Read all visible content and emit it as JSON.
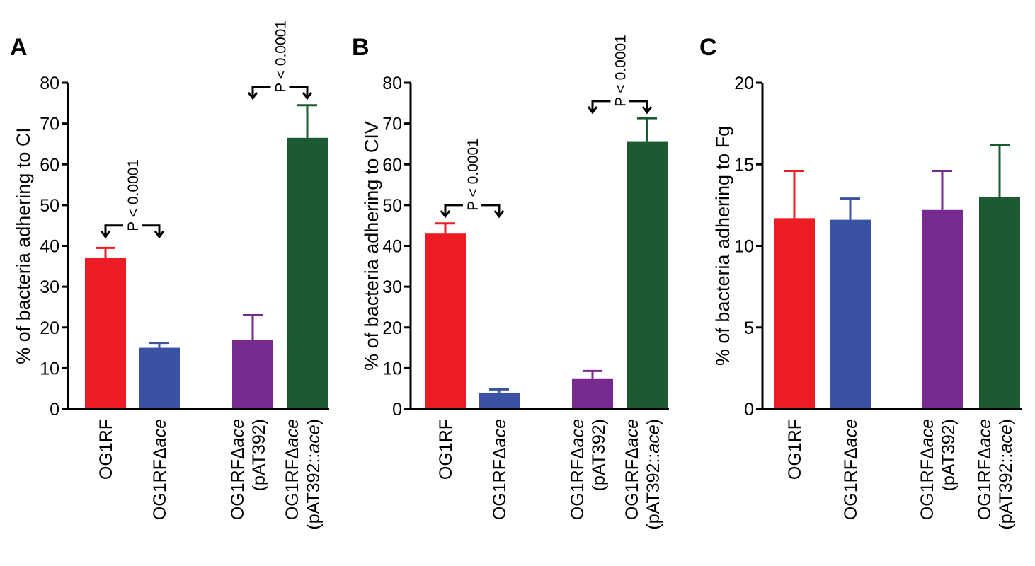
{
  "chart_data": [
    {
      "type": "bar",
      "panel": "A",
      "ylabel": "% of bacteria adhering to CI",
      "ylim": [
        0,
        80
      ],
      "yticks": [
        0,
        10,
        20,
        30,
        40,
        50,
        60,
        70,
        80
      ],
      "categories": [
        {
          "line1": "OG1RF",
          "line1_italic": "",
          "line2": ""
        },
        {
          "line1": "OG1RFΔ",
          "line1_italic": "ace",
          "line2": ""
        },
        {
          "line1": "OG1RFΔ",
          "line1_italic": "ace",
          "line2": "(pAT392)"
        },
        {
          "line1": "OG1RFΔ",
          "line1_italic": "ace",
          "line2": "(pAT392::",
          "line2_italic": "ace",
          "line2_tail": ")"
        }
      ],
      "values": [
        37,
        15,
        17,
        66.5
      ],
      "errors": [
        2.5,
        1.2,
        6,
        8
      ],
      "colors": [
        "#ec1c24",
        "#3952a4",
        "#762a8f",
        "#1c5b32"
      ],
      "annotations": [
        {
          "text": "P < 0.0001",
          "from": 0,
          "to": 1,
          "y": 45
        },
        {
          "text": "P < 0.0001",
          "from": 2,
          "to": 3,
          "y": 79
        }
      ]
    },
    {
      "type": "bar",
      "panel": "B",
      "ylabel": "% of bacteria adhering to CIV",
      "ylim": [
        0,
        80
      ],
      "yticks": [
        0,
        10,
        20,
        30,
        40,
        50,
        60,
        70,
        80
      ],
      "categories": [
        {
          "line1": "OG1RF",
          "line1_italic": "",
          "line2": ""
        },
        {
          "line1": "OG1RFΔ",
          "line1_italic": "ace",
          "line2": ""
        },
        {
          "line1": "OG1RFΔ",
          "line1_italic": "ace",
          "line2": "(pAT392)"
        },
        {
          "line1": "OG1RFΔ",
          "line1_italic": "ace",
          "line2": "(pAT392::",
          "line2_italic": "ace",
          "line2_tail": ")"
        }
      ],
      "values": [
        43,
        4,
        7.5,
        65.5
      ],
      "errors": [
        2.5,
        0.8,
        1.8,
        5.8
      ],
      "colors": [
        "#ec1c24",
        "#3952a4",
        "#762a8f",
        "#1c5b32"
      ],
      "annotations": [
        {
          "text": "P < 0.0001",
          "from": 0,
          "to": 1,
          "y": 50
        },
        {
          "text": "P < 0.0001",
          "from": 2,
          "to": 3,
          "y": 75.5
        }
      ]
    },
    {
      "type": "bar",
      "panel": "C",
      "ylabel": "% of bacteria adhering to Fg",
      "ylim": [
        0,
        20
      ],
      "yticks": [
        0,
        5,
        10,
        15,
        20
      ],
      "categories": [
        {
          "line1": "OG1RF",
          "line1_italic": "",
          "line2": ""
        },
        {
          "line1": "OG1RFΔ",
          "line1_italic": "ace",
          "line2": ""
        },
        {
          "line1": "OG1RFΔ",
          "line1_italic": "ace",
          "line2": "(pAT392)"
        },
        {
          "line1": "OG1RFΔ",
          "line1_italic": "ace",
          "line2": "(pAT392::",
          "line2_italic": "ace",
          "line2_tail": ")"
        }
      ],
      "values": [
        11.7,
        11.6,
        12.2,
        13
      ],
      "errors": [
        2.9,
        1.3,
        2.4,
        3.2
      ],
      "colors": [
        "#ec1c24",
        "#3952a4",
        "#762a8f",
        "#1c5b32"
      ],
      "annotations": []
    }
  ]
}
